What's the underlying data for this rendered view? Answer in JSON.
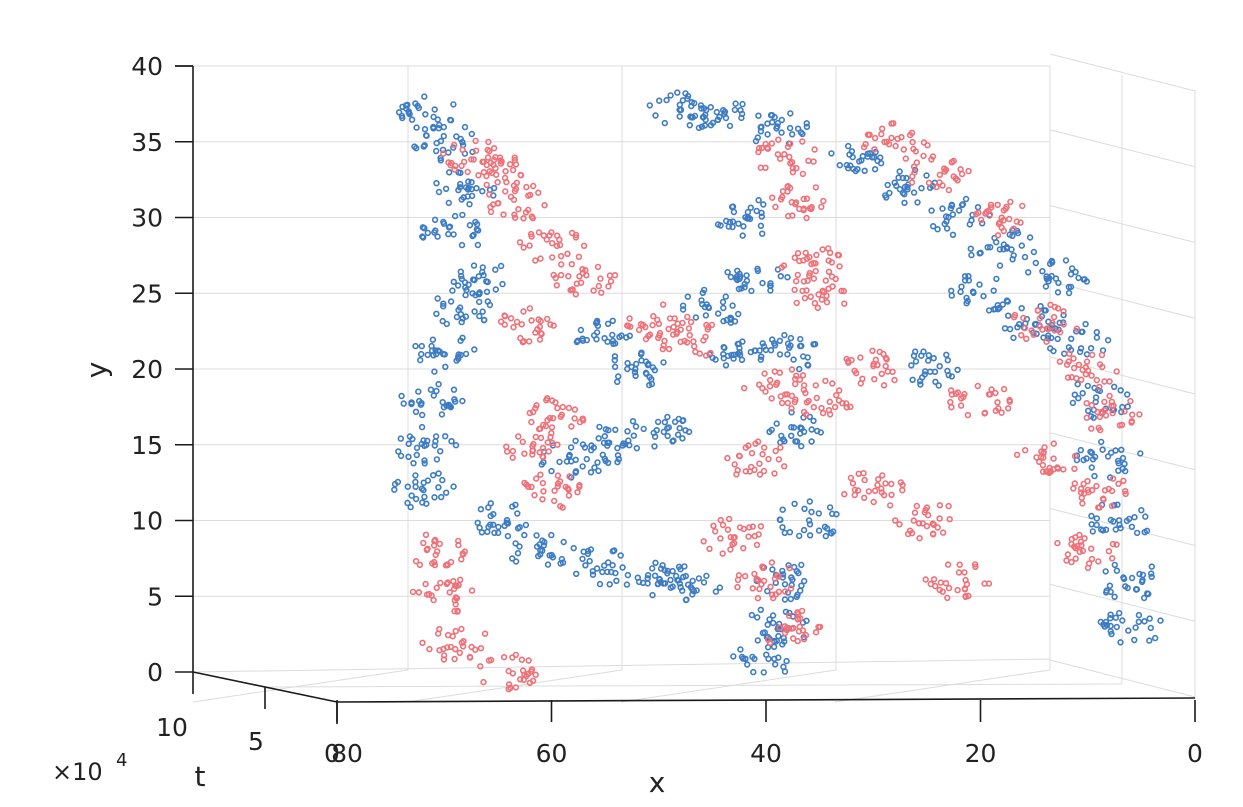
{
  "chart_data": {
    "type": "scatter",
    "view": "3d",
    "title": "",
    "xlabel": "x",
    "ylabel": "y",
    "zlabel": "t",
    "xlim": [
      0,
      80
    ],
    "ylim": [
      0,
      40
    ],
    "tlim": [
      0,
      100000
    ],
    "t_multiplier_label": "×10",
    "t_multiplier_exponent": "4",
    "x_ticks": [
      "0",
      "20",
      "40",
      "60",
      "80"
    ],
    "y_ticks": [
      "0",
      "5",
      "10",
      "15",
      "20",
      "25",
      "30",
      "35",
      "40"
    ],
    "t_ticks": [
      "0",
      "5",
      "10"
    ],
    "grid": true,
    "series_colors": [
      "#3d7cc4",
      "#f07078"
    ],
    "series": [
      {
        "color": "#3d7cc4",
        "points": [
          [
            72,
            37
          ],
          [
            70,
            35
          ],
          [
            68,
            32
          ],
          [
            69,
            29
          ],
          [
            67,
            26
          ],
          [
            68,
            24
          ],
          [
            70,
            21
          ],
          [
            71,
            18
          ],
          [
            72,
            15
          ],
          [
            72,
            12
          ],
          [
            65,
            10
          ],
          [
            61,
            8
          ],
          [
            55,
            7
          ],
          [
            50,
            6
          ],
          [
            47,
            6
          ],
          [
            58,
            14
          ],
          [
            55,
            15
          ],
          [
            50,
            16
          ],
          [
            52,
            20
          ],
          [
            55,
            22
          ],
          [
            48,
            37
          ],
          [
            45,
            37
          ],
          [
            39,
            36
          ],
          [
            42,
            30
          ],
          [
            41,
            26
          ],
          [
            45,
            24
          ],
          [
            43,
            21
          ],
          [
            38,
            21
          ],
          [
            37,
            16
          ],
          [
            36,
            10
          ],
          [
            38,
            6
          ],
          [
            39,
            3
          ],
          [
            40,
            1
          ],
          [
            32,
            34
          ],
          [
            27,
            32
          ],
          [
            22,
            30
          ],
          [
            18,
            28
          ],
          [
            13,
            26
          ],
          [
            11,
            22
          ],
          [
            9,
            18
          ],
          [
            8,
            14
          ],
          [
            7,
            10
          ],
          [
            6,
            6
          ],
          [
            6,
            3
          ],
          [
            20,
            25
          ],
          [
            15,
            23
          ],
          [
            25,
            20
          ]
        ]
      },
      {
        "color": "#f07078",
        "points": [
          [
            67,
            34
          ],
          [
            65,
            33
          ],
          [
            63,
            31
          ],
          [
            60,
            28
          ],
          [
            57,
            26
          ],
          [
            62,
            23
          ],
          [
            60,
            17
          ],
          [
            62,
            15
          ],
          [
            60,
            12
          ],
          [
            71,
            8
          ],
          [
            70,
            5
          ],
          [
            69,
            2
          ],
          [
            64,
            0
          ],
          [
            50,
            23
          ],
          [
            47,
            22
          ],
          [
            38,
            34
          ],
          [
            37,
            31
          ],
          [
            36,
            27
          ],
          [
            35,
            25
          ],
          [
            39,
            19
          ],
          [
            41,
            14
          ],
          [
            43,
            9
          ],
          [
            40,
            6
          ],
          [
            38,
            3
          ],
          [
            35,
            18
          ],
          [
            30,
            20
          ],
          [
            28,
            35
          ],
          [
            24,
            33
          ],
          [
            18,
            30
          ],
          [
            14,
            23
          ],
          [
            10,
            20
          ],
          [
            8,
            17
          ],
          [
            9,
            12
          ],
          [
            10,
            8
          ],
          [
            14,
            14
          ],
          [
            20,
            18
          ],
          [
            25,
            10
          ],
          [
            30,
            12
          ],
          [
            22,
            6
          ]
        ]
      }
    ]
  }
}
